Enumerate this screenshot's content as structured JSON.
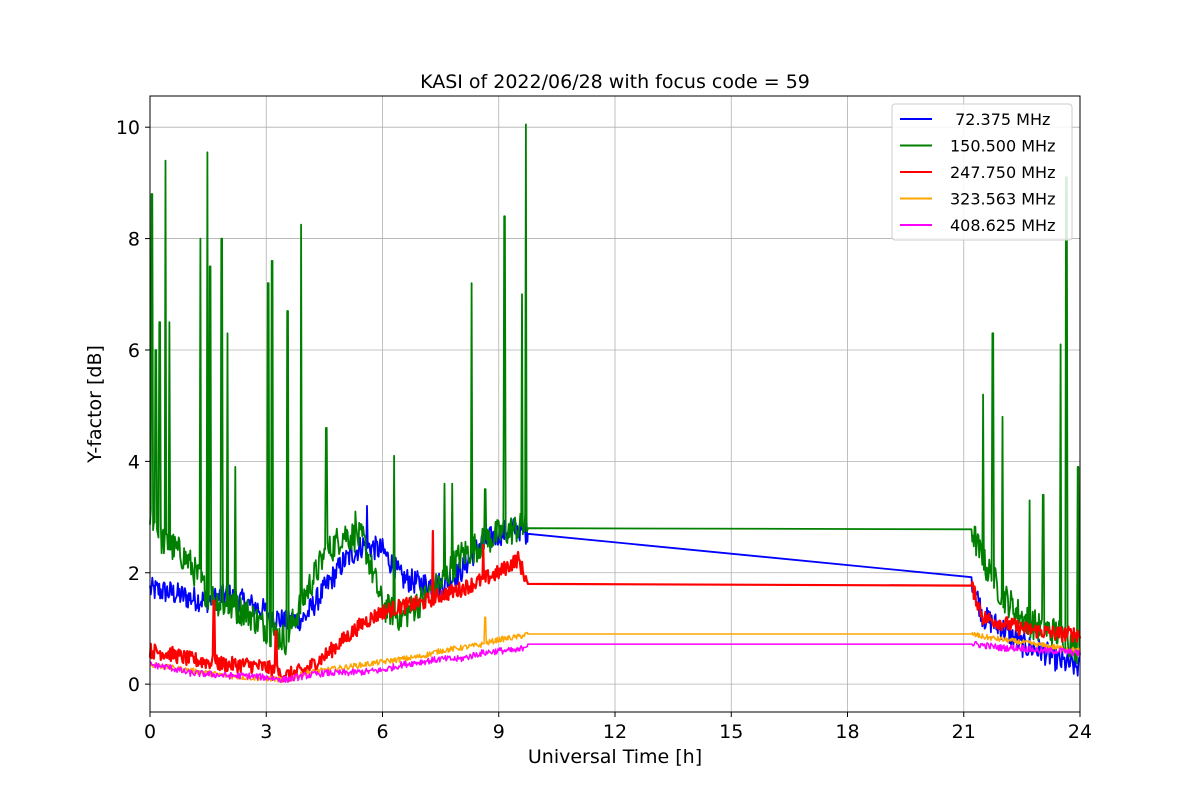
{
  "chart_data": {
    "type": "line",
    "title": "KASI of 2022/06/28 with focus code = 59",
    "xlabel": "Universal Time [h]",
    "ylabel": "Y-factor [dB]",
    "xlim": [
      0,
      24
    ],
    "ylim": [
      -0.5,
      10.56
    ],
    "xticks": [
      0,
      3,
      6,
      9,
      12,
      15,
      18,
      21,
      24
    ],
    "xtick_labels": [
      "0",
      "3",
      "6",
      "9",
      "12",
      "15",
      "18",
      "21",
      "24"
    ],
    "yticks": [
      0,
      2,
      4,
      6,
      8,
      10
    ],
    "ytick_labels": [
      "0",
      "2",
      "4",
      "6",
      "8",
      "10"
    ],
    "grid": true,
    "legend_position": "top-right",
    "data_gap_hours": [
      9.75,
      21.2
    ],
    "series": [
      {
        "name": " 72.375 MHz",
        "color": "#0000ff",
        "x": [
          0,
          0.5,
          1,
          1.5,
          2,
          2.5,
          3,
          3.5,
          4,
          4.5,
          5,
          5.5,
          6,
          6.5,
          7,
          7.5,
          8,
          8.5,
          9,
          9.5,
          9.75,
          21.2,
          21.5,
          22,
          22.5,
          23,
          23.5,
          24
        ],
        "values": [
          1.7,
          1.65,
          1.55,
          1.5,
          1.6,
          1.45,
          1.3,
          1.1,
          1.2,
          1.7,
          2.2,
          2.5,
          2.4,
          1.9,
          1.8,
          1.8,
          2.0,
          2.5,
          2.7,
          2.8,
          2.7,
          1.92,
          1.2,
          1.0,
          0.7,
          0.6,
          0.4,
          0.3
        ],
        "spikes": [
          [
            5.6,
            3.2
          ]
        ]
      },
      {
        "name": "150.500 MHz",
        "color": "#008000",
        "x": [
          0,
          0.3,
          0.7,
          1,
          1.5,
          2,
          2.5,
          3,
          3.5,
          4,
          4.5,
          5,
          5.5,
          6,
          6.5,
          7,
          7.5,
          8,
          8.5,
          9,
          9.5,
          9.75,
          21.2,
          21.5,
          22,
          22.5,
          23,
          23.5,
          24
        ],
        "values": [
          3.0,
          2.6,
          2.4,
          2.2,
          1.6,
          1.4,
          1.3,
          1.0,
          0.8,
          1.6,
          2.3,
          2.7,
          2.6,
          1.4,
          1.2,
          1.5,
          1.8,
          2.3,
          2.5,
          2.7,
          2.8,
          2.8,
          2.78,
          2.2,
          1.6,
          1.2,
          1.0,
          0.9,
          0.6
        ],
        "spikes": [
          [
            0.05,
            8.8
          ],
          [
            0.15,
            6.0
          ],
          [
            0.25,
            6.5
          ],
          [
            0.4,
            9.4
          ],
          [
            0.5,
            6.5
          ],
          [
            1.3,
            8.0
          ],
          [
            1.48,
            9.55
          ],
          [
            1.55,
            7.5
          ],
          [
            1.85,
            8.0
          ],
          [
            2.0,
            6.3
          ],
          [
            2.2,
            3.9
          ],
          [
            3.05,
            7.2
          ],
          [
            3.15,
            7.6
          ],
          [
            3.55,
            6.7
          ],
          [
            3.9,
            8.25
          ],
          [
            4.55,
            4.6
          ],
          [
            5.3,
            3.1
          ],
          [
            6.3,
            4.1
          ],
          [
            7.6,
            3.6
          ],
          [
            7.8,
            3.6
          ],
          [
            8.3,
            7.2
          ],
          [
            8.65,
            3.5
          ],
          [
            9.15,
            8.4
          ],
          [
            9.6,
            7.0
          ],
          [
            9.7,
            10.05
          ],
          [
            21.5,
            5.2
          ],
          [
            21.75,
            6.3
          ],
          [
            22.0,
            4.8
          ],
          [
            22.7,
            3.3
          ],
          [
            23.05,
            3.4
          ],
          [
            23.5,
            6.1
          ],
          [
            23.65,
            9.1
          ],
          [
            23.95,
            3.9
          ]
        ]
      },
      {
        "name": "247.750 MHz",
        "color": "#ff0000",
        "x": [
          0,
          0.5,
          1,
          1.5,
          2,
          2.5,
          3,
          3.5,
          4,
          4.5,
          5,
          5.5,
          6,
          6.5,
          7,
          7.5,
          8,
          8.5,
          9,
          9.5,
          9.75,
          21.2,
          21.5,
          22,
          22.5,
          23,
          23.5,
          24
        ],
        "values": [
          0.6,
          0.55,
          0.45,
          0.4,
          0.35,
          0.35,
          0.3,
          0.15,
          0.25,
          0.5,
          0.8,
          1.1,
          1.3,
          1.4,
          1.45,
          1.6,
          1.7,
          1.85,
          2.0,
          2.25,
          1.8,
          1.77,
          1.2,
          1.1,
          1.0,
          0.95,
          0.9,
          0.9
        ],
        "spikes": [
          [
            1.65,
            1.5
          ],
          [
            3.25,
            0.95
          ],
          [
            7.3,
            2.75
          ],
          [
            8.6,
            2.5
          ]
        ]
      },
      {
        "name": "323.563 MHz",
        "color": "#ffa500",
        "x": [
          0,
          0.5,
          1,
          1.5,
          2,
          2.5,
          3,
          3.5,
          4,
          4.5,
          5,
          5.5,
          6,
          6.5,
          7,
          7.5,
          8,
          8.5,
          9,
          9.5,
          9.75,
          21.2,
          21.5,
          22,
          22.5,
          23,
          23.5,
          24
        ],
        "values": [
          0.35,
          0.3,
          0.25,
          0.2,
          0.15,
          0.12,
          0.1,
          0.08,
          0.2,
          0.25,
          0.3,
          0.35,
          0.4,
          0.45,
          0.5,
          0.6,
          0.65,
          0.7,
          0.8,
          0.85,
          0.9,
          0.9,
          0.85,
          0.8,
          0.75,
          0.7,
          0.65,
          0.6
        ],
        "spikes": [
          [
            8.65,
            1.2
          ]
        ]
      },
      {
        "name": "408.625 MHz",
        "color": "#ff00ff",
        "x": [
          0,
          0.5,
          1,
          1.5,
          2,
          2.5,
          3,
          3.5,
          4,
          4.5,
          5,
          5.5,
          6,
          6.5,
          7,
          7.5,
          8,
          8.5,
          9,
          9.5,
          9.75,
          21.2,
          21.5,
          22,
          22.5,
          23,
          23.5,
          24
        ],
        "values": [
          0.35,
          0.3,
          0.2,
          0.18,
          0.15,
          0.15,
          0.12,
          0.08,
          0.15,
          0.2,
          0.2,
          0.22,
          0.25,
          0.35,
          0.4,
          0.45,
          0.45,
          0.55,
          0.6,
          0.6,
          0.72,
          0.72,
          0.7,
          0.65,
          0.65,
          0.6,
          0.6,
          0.55
        ],
        "spikes": []
      }
    ]
  }
}
